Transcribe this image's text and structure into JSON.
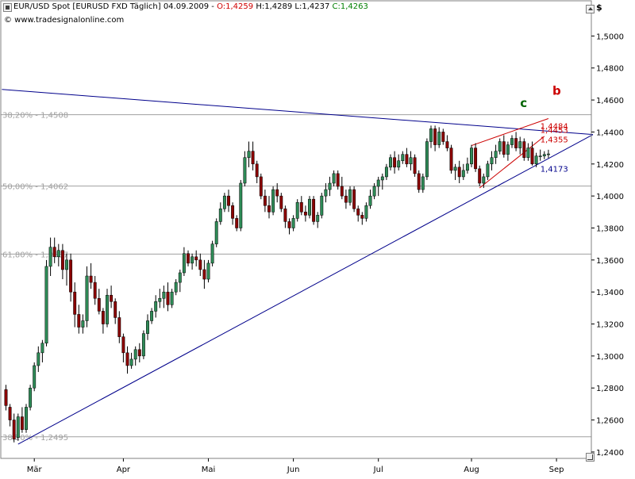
{
  "header": {
    "instrument": "EUR/USD Spot [EURUSD FXD  Täglich] 04.09.2009 -",
    "open": "O:1,4259",
    "high": "H:1,4289",
    "low": "L:1,4237",
    "close": "C:1,4263"
  },
  "website": "© www.tradesignalonline.com",
  "currency_label": "$",
  "colors": {
    "bull": "#2e8b57",
    "bear": "#8b0000",
    "trendline": "#00008b",
    "wedge": "#cc0000",
    "fib": "#a0a0a0",
    "axis_text": "#000000"
  },
  "chart_data": {
    "type": "candlestick",
    "ylim": [
      1.236,
      1.522
    ],
    "y_ticks": [
      "1,2400",
      "1,2600",
      "1,2800",
      "1,3000",
      "1,3200",
      "1,3400",
      "1,3600",
      "1,3800",
      "1,4000",
      "1,4200",
      "1,4400",
      "1,4600",
      "1,4800",
      "1,5000"
    ],
    "y_tick_values": [
      1.24,
      1.26,
      1.28,
      1.3,
      1.32,
      1.34,
      1.36,
      1.38,
      1.4,
      1.42,
      1.44,
      1.46,
      1.48,
      1.5
    ],
    "x_labels": [
      {
        "label": "Mär",
        "index": 7
      },
      {
        "label": "Apr",
        "index": 29
      },
      {
        "label": "Mai",
        "index": 50
      },
      {
        "label": "Jun",
        "index": 71
      },
      {
        "label": "Jul",
        "index": 92
      },
      {
        "label": "Aug",
        "index": 115
      },
      {
        "label": "Sep",
        "index": 136
      }
    ],
    "fib_levels": [
      {
        "label": "38,20% - 1,4508",
        "value": 1.4508
      },
      {
        "label": "50,00% - 1,4062",
        "value": 1.4062
      },
      {
        "label": "61,80% - 1,3637",
        "value": 1.3637
      },
      {
        "label": "38,20% - 1,2495",
        "value": 1.2495
      }
    ],
    "annotations": [
      {
        "text": "b",
        "color": "#cc0000",
        "index": 135,
        "value": 1.4633
      },
      {
        "text": "c",
        "color": "#006400",
        "index": 127,
        "value": 1.4557
      },
      {
        "text": "1,4484",
        "color": "#cc0000",
        "index": 132,
        "value": 1.442
      },
      {
        "text": "1,4453",
        "color": "#cc0000",
        "index": 132,
        "value": 1.4395
      },
      {
        "text": "1,4355",
        "color": "#cc0000",
        "index": 132,
        "value": 1.4334
      },
      {
        "text": "1,4173",
        "color": "#00008b",
        "index": 132,
        "value": 1.4153
      }
    ],
    "trendlines": [
      {
        "name": "resistance",
        "color": "#00008b",
        "from": {
          "index": -1,
          "value": 1.4666
        },
        "to": {
          "index": 145,
          "value": 1.4384
        }
      },
      {
        "name": "support",
        "color": "#00008b",
        "from": {
          "index": 3,
          "value": 1.2449
        },
        "to": {
          "index": 145,
          "value": 1.4384
        }
      },
      {
        "name": "wedge-upper",
        "color": "#cc0000",
        "from": {
          "index": 115,
          "value": 1.4315
        },
        "to": {
          "index": 134,
          "value": 1.4484
        }
      },
      {
        "name": "wedge-lower",
        "color": "#cc0000",
        "from": {
          "index": 117,
          "value": 1.405
        },
        "to": {
          "index": 133,
          "value": 1.4373
        }
      }
    ],
    "ohlc": [
      [
        1.279,
        1.282,
        1.266,
        1.269
      ],
      [
        1.268,
        1.27,
        1.256,
        1.26
      ],
      [
        1.26,
        1.264,
        1.246,
        1.248
      ],
      [
        1.249,
        1.264,
        1.247,
        1.262
      ],
      [
        1.262,
        1.268,
        1.252,
        1.254
      ],
      [
        1.254,
        1.27,
        1.252,
        1.268
      ],
      [
        1.268,
        1.282,
        1.266,
        1.28
      ],
      [
        1.28,
        1.296,
        1.278,
        1.294
      ],
      [
        1.294,
        1.306,
        1.29,
        1.302
      ],
      [
        1.302,
        1.31,
        1.296,
        1.308
      ],
      [
        1.308,
        1.36,
        1.306,
        1.356
      ],
      [
        1.356,
        1.374,
        1.35,
        1.368
      ],
      [
        1.368,
        1.374,
        1.358,
        1.362
      ],
      [
        1.362,
        1.37,
        1.356,
        1.366
      ],
      [
        1.366,
        1.37,
        1.348,
        1.354
      ],
      [
        1.354,
        1.364,
        1.344,
        1.36
      ],
      [
        1.36,
        1.364,
        1.334,
        1.34
      ],
      [
        1.34,
        1.346,
        1.318,
        1.326
      ],
      [
        1.326,
        1.332,
        1.314,
        1.318
      ],
      [
        1.318,
        1.326,
        1.314,
        1.322
      ],
      [
        1.322,
        1.356,
        1.318,
        1.35
      ],
      [
        1.35,
        1.358,
        1.342,
        1.346
      ],
      [
        1.346,
        1.35,
        1.332,
        1.336
      ],
      [
        1.336,
        1.342,
        1.326,
        1.328
      ],
      [
        1.328,
        1.33,
        1.314,
        1.32
      ],
      [
        1.32,
        1.342,
        1.318,
        1.338
      ],
      [
        1.338,
        1.344,
        1.33,
        1.334
      ],
      [
        1.334,
        1.336,
        1.32,
        1.324
      ],
      [
        1.324,
        1.328,
        1.308,
        1.312
      ],
      [
        1.312,
        1.314,
        1.296,
        1.302
      ],
      [
        1.302,
        1.306,
        1.289,
        1.294
      ],
      [
        1.294,
        1.302,
        1.292,
        1.298
      ],
      [
        1.298,
        1.306,
        1.294,
        1.304
      ],
      [
        1.304,
        1.308,
        1.296,
        1.3
      ],
      [
        1.3,
        1.316,
        1.298,
        1.314
      ],
      [
        1.314,
        1.326,
        1.31,
        1.322
      ],
      [
        1.322,
        1.33,
        1.32,
        1.328
      ],
      [
        1.328,
        1.338,
        1.324,
        1.334
      ],
      [
        1.334,
        1.342,
        1.33,
        1.336
      ],
      [
        1.336,
        1.344,
        1.33,
        1.34
      ],
      [
        1.34,
        1.346,
        1.328,
        1.332
      ],
      [
        1.332,
        1.342,
        1.33,
        1.34
      ],
      [
        1.34,
        1.348,
        1.338,
        1.346
      ],
      [
        1.346,
        1.354,
        1.34,
        1.352
      ],
      [
        1.352,
        1.368,
        1.35,
        1.364
      ],
      [
        1.364,
        1.366,
        1.356,
        1.358
      ],
      [
        1.358,
        1.364,
        1.354,
        1.362
      ],
      [
        1.362,
        1.366,
        1.356,
        1.36
      ],
      [
        1.36,
        1.364,
        1.35,
        1.354
      ],
      [
        1.354,
        1.36,
        1.342,
        1.348
      ],
      [
        1.348,
        1.36,
        1.346,
        1.358
      ],
      [
        1.358,
        1.372,
        1.356,
        1.37
      ],
      [
        1.37,
        1.386,
        1.368,
        1.384
      ],
      [
        1.384,
        1.396,
        1.382,
        1.392
      ],
      [
        1.392,
        1.402,
        1.39,
        1.4
      ],
      [
        1.4,
        1.404,
        1.39,
        1.394
      ],
      [
        1.394,
        1.396,
        1.382,
        1.386
      ],
      [
        1.386,
        1.388,
        1.378,
        1.38
      ],
      [
        1.38,
        1.41,
        1.378,
        1.408
      ],
      [
        1.408,
        1.428,
        1.406,
        1.424
      ],
      [
        1.424,
        1.434,
        1.418,
        1.428
      ],
      [
        1.428,
        1.434,
        1.416,
        1.42
      ],
      [
        1.42,
        1.422,
        1.408,
        1.412
      ],
      [
        1.412,
        1.414,
        1.398,
        1.4
      ],
      [
        1.4,
        1.404,
        1.39,
        1.394
      ],
      [
        1.394,
        1.4,
        1.386,
        1.39
      ],
      [
        1.39,
        1.406,
        1.388,
        1.404
      ],
      [
        1.404,
        1.408,
        1.396,
        1.4
      ],
      [
        1.4,
        1.402,
        1.39,
        1.392
      ],
      [
        1.392,
        1.394,
        1.38,
        1.384
      ],
      [
        1.384,
        1.386,
        1.376,
        1.38
      ],
      [
        1.38,
        1.388,
        1.378,
        1.386
      ],
      [
        1.386,
        1.398,
        1.384,
        1.396
      ],
      [
        1.396,
        1.4,
        1.388,
        1.39
      ],
      [
        1.39,
        1.394,
        1.384,
        1.388
      ],
      [
        1.388,
        1.4,
        1.386,
        1.398
      ],
      [
        1.398,
        1.4,
        1.382,
        1.384
      ],
      [
        1.384,
        1.39,
        1.38,
        1.388
      ],
      [
        1.388,
        1.402,
        1.386,
        1.4
      ],
      [
        1.4,
        1.408,
        1.396,
        1.404
      ],
      [
        1.404,
        1.412,
        1.4,
        1.408
      ],
      [
        1.408,
        1.416,
        1.406,
        1.414
      ],
      [
        1.414,
        1.416,
        1.404,
        1.406
      ],
      [
        1.406,
        1.412,
        1.398,
        1.4
      ],
      [
        1.4,
        1.404,
        1.392,
        1.396
      ],
      [
        1.396,
        1.406,
        1.394,
        1.404
      ],
      [
        1.404,
        1.406,
        1.39,
        1.392
      ],
      [
        1.392,
        1.394,
        1.384,
        1.388
      ],
      [
        1.388,
        1.39,
        1.382,
        1.386
      ],
      [
        1.386,
        1.396,
        1.384,
        1.394
      ],
      [
        1.394,
        1.404,
        1.392,
        1.4
      ],
      [
        1.4,
        1.408,
        1.398,
        1.406
      ],
      [
        1.406,
        1.412,
        1.4,
        1.41
      ],
      [
        1.41,
        1.414,
        1.404,
        1.412
      ],
      [
        1.412,
        1.42,
        1.41,
        1.418
      ],
      [
        1.418,
        1.426,
        1.416,
        1.424
      ],
      [
        1.424,
        1.428,
        1.414,
        1.418
      ],
      [
        1.418,
        1.426,
        1.416,
        1.422
      ],
      [
        1.422,
        1.428,
        1.42,
        1.426
      ],
      [
        1.426,
        1.43,
        1.418,
        1.42
      ],
      [
        1.42,
        1.428,
        1.416,
        1.424
      ],
      [
        1.424,
        1.426,
        1.412,
        1.414
      ],
      [
        1.414,
        1.416,
        1.402,
        1.404
      ],
      [
        1.404,
        1.414,
        1.402,
        1.412
      ],
      [
        1.412,
        1.436,
        1.41,
        1.434
      ],
      [
        1.434,
        1.444,
        1.43,
        1.442
      ],
      [
        1.442,
        1.444,
        1.428,
        1.432
      ],
      [
        1.432,
        1.443,
        1.43,
        1.44
      ],
      [
        1.44,
        1.442,
        1.432,
        1.434
      ],
      [
        1.434,
        1.438,
        1.428,
        1.43
      ],
      [
        1.43,
        1.432,
        1.414,
        1.416
      ],
      [
        1.416,
        1.42,
        1.41,
        1.418
      ],
      [
        1.418,
        1.422,
        1.408,
        1.412
      ],
      [
        1.412,
        1.42,
        1.41,
        1.416
      ],
      [
        1.416,
        1.424,
        1.414,
        1.42
      ],
      [
        1.42,
        1.432,
        1.418,
        1.43
      ],
      [
        1.43,
        1.433,
        1.415,
        1.417
      ],
      [
        1.417,
        1.419,
        1.406,
        1.408
      ],
      [
        1.408,
        1.414,
        1.405,
        1.412
      ],
      [
        1.412,
        1.422,
        1.41,
        1.42
      ],
      [
        1.42,
        1.428,
        1.416,
        1.424
      ],
      [
        1.424,
        1.432,
        1.42,
        1.428
      ],
      [
        1.428,
        1.436,
        1.426,
        1.434
      ],
      [
        1.434,
        1.438,
        1.424,
        1.426
      ],
      [
        1.426,
        1.434,
        1.422,
        1.432
      ],
      [
        1.432,
        1.438,
        1.43,
        1.436
      ],
      [
        1.436,
        1.44,
        1.428,
        1.43
      ],
      [
        1.43,
        1.437,
        1.426,
        1.434
      ],
      [
        1.434,
        1.436,
        1.422,
        1.424
      ],
      [
        1.424,
        1.433,
        1.422,
        1.43
      ],
      [
        1.43,
        1.434,
        1.419,
        1.42
      ],
      [
        1.42,
        1.427,
        1.418,
        1.425
      ],
      [
        1.425,
        1.429,
        1.422,
        1.425
      ],
      [
        1.425,
        1.428,
        1.423,
        1.426
      ],
      [
        1.4259,
        1.4289,
        1.4237,
        1.4263
      ]
    ]
  }
}
